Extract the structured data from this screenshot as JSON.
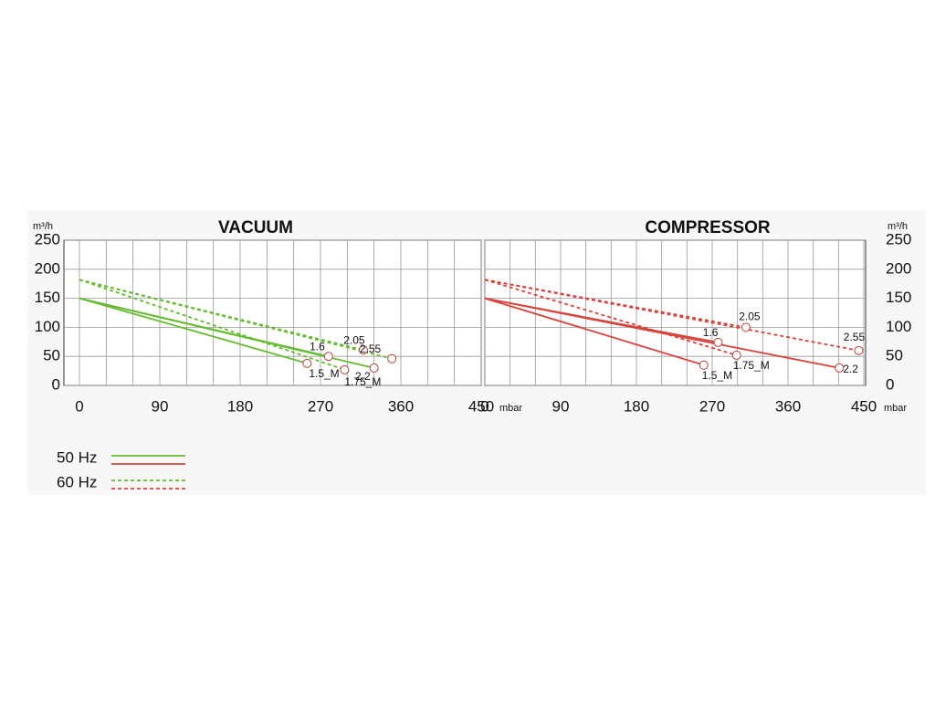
{
  "chart_data": [
    {
      "type": "line",
      "title": "VACUUM",
      "y_unit": "m³/h",
      "x_unit": "mbar",
      "xlim": [
        450,
        0
      ],
      "xticks": [
        450,
        360,
        270,
        180,
        90,
        0
      ],
      "ylim": [
        0,
        250
      ],
      "yticks": [
        0,
        50,
        100,
        150,
        200,
        250
      ],
      "grid": true,
      "minor_grid": 3,
      "y_axis_side": "left",
      "series": [
        {
          "name": "1.5_M",
          "frequency": "50 Hz",
          "color": "#66bb33",
          "dash": "solid",
          "x": [
            0,
            255
          ],
          "values": [
            150,
            38
          ]
        },
        {
          "name": "1.6",
          "frequency": "50 Hz",
          "color": "#66bb33",
          "dash": "solid",
          "x": [
            0,
            279
          ],
          "values": [
            150,
            50
          ]
        },
        {
          "name": "2.2",
          "frequency": "50 Hz",
          "color": "#66bb33",
          "dash": "solid",
          "x": [
            0,
            330
          ],
          "values": [
            150,
            30
          ]
        },
        {
          "name": "1.75_M",
          "frequency": "60 Hz",
          "color": "#66bb33",
          "dash": "dashed",
          "x": [
            0,
            297
          ],
          "values": [
            182,
            27
          ]
        },
        {
          "name": "2.05",
          "frequency": "60 Hz",
          "color": "#66bb33",
          "dash": "dashed",
          "x": [
            0,
            318
          ],
          "values": [
            182,
            61
          ]
        },
        {
          "name": "2.55",
          "frequency": "60 Hz",
          "color": "#66bb33",
          "dash": "dashed",
          "x": [
            0,
            350
          ],
          "values": [
            182,
            46
          ]
        }
      ]
    },
    {
      "type": "line",
      "title": "COMPRESSOR",
      "y_unit": "m³/h",
      "x_unit": "mbar",
      "xlim": [
        0,
        450
      ],
      "xticks": [
        0,
        90,
        180,
        270,
        360,
        450
      ],
      "ylim": [
        0,
        250
      ],
      "yticks": [
        0,
        50,
        100,
        150,
        200,
        250
      ],
      "grid": true,
      "minor_grid": 3,
      "y_axis_side": "right",
      "series": [
        {
          "name": "1.5_M",
          "frequency": "50 Hz",
          "color": "#d6453d",
          "dash": "solid",
          "x": [
            0,
            260
          ],
          "values": [
            150,
            35
          ]
        },
        {
          "name": "1.6",
          "frequency": "50 Hz",
          "color": "#d6453d",
          "dash": "solid",
          "x": [
            0,
            277
          ],
          "values": [
            150,
            74
          ]
        },
        {
          "name": "2.2",
          "frequency": "50 Hz",
          "color": "#d6453d",
          "dash": "solid",
          "x": [
            0,
            421
          ],
          "values": [
            150,
            30
          ]
        },
        {
          "name": "1.75_M",
          "frequency": "60 Hz",
          "color": "#d6453d",
          "dash": "dashed",
          "x": [
            0,
            299
          ],
          "values": [
            182,
            52
          ]
        },
        {
          "name": "2.05",
          "frequency": "60 Hz",
          "color": "#d6453d",
          "dash": "dashed",
          "x": [
            0,
            310
          ],
          "values": [
            182,
            100
          ]
        },
        {
          "name": "2.55",
          "frequency": "60 Hz",
          "color": "#d6453d",
          "dash": "dashed",
          "x": [
            0,
            444
          ],
          "values": [
            182,
            60
          ]
        }
      ]
    }
  ],
  "legend": [
    {
      "label": "50 Hz",
      "dash": "solid",
      "colors": [
        "#66bb33",
        "#d6453d"
      ]
    },
    {
      "label": "60 Hz",
      "dash": "dashed",
      "colors": [
        "#66bb33",
        "#d6453d"
      ]
    }
  ]
}
